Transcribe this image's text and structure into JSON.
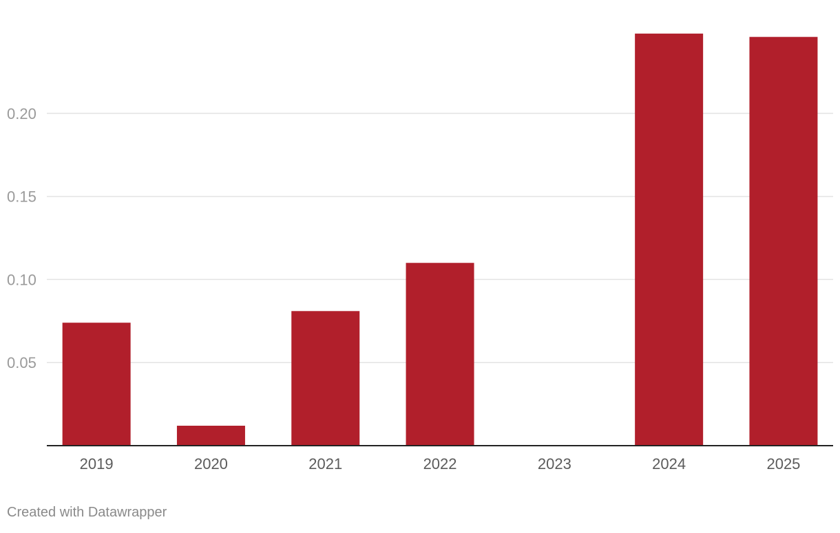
{
  "chart_data": {
    "type": "bar",
    "title": "",
    "xlabel": "",
    "ylabel": "",
    "categories": [
      "2019",
      "2020",
      "2021",
      "2022",
      "2023",
      "2024",
      "2025"
    ],
    "values": [
      0.074,
      0.012,
      0.081,
      0.11,
      0,
      0.248,
      0.246
    ],
    "ylim": [
      0,
      0.25
    ],
    "yticks": [
      0.05,
      0.1,
      0.15,
      0.2
    ],
    "ytick_labels": [
      "0.05",
      "0.10",
      "0.15",
      "0.20"
    ],
    "grid": true,
    "legend": "none",
    "bar_color": "#b11f2b"
  },
  "footer": {
    "credit": "Created with Datawrapper"
  }
}
